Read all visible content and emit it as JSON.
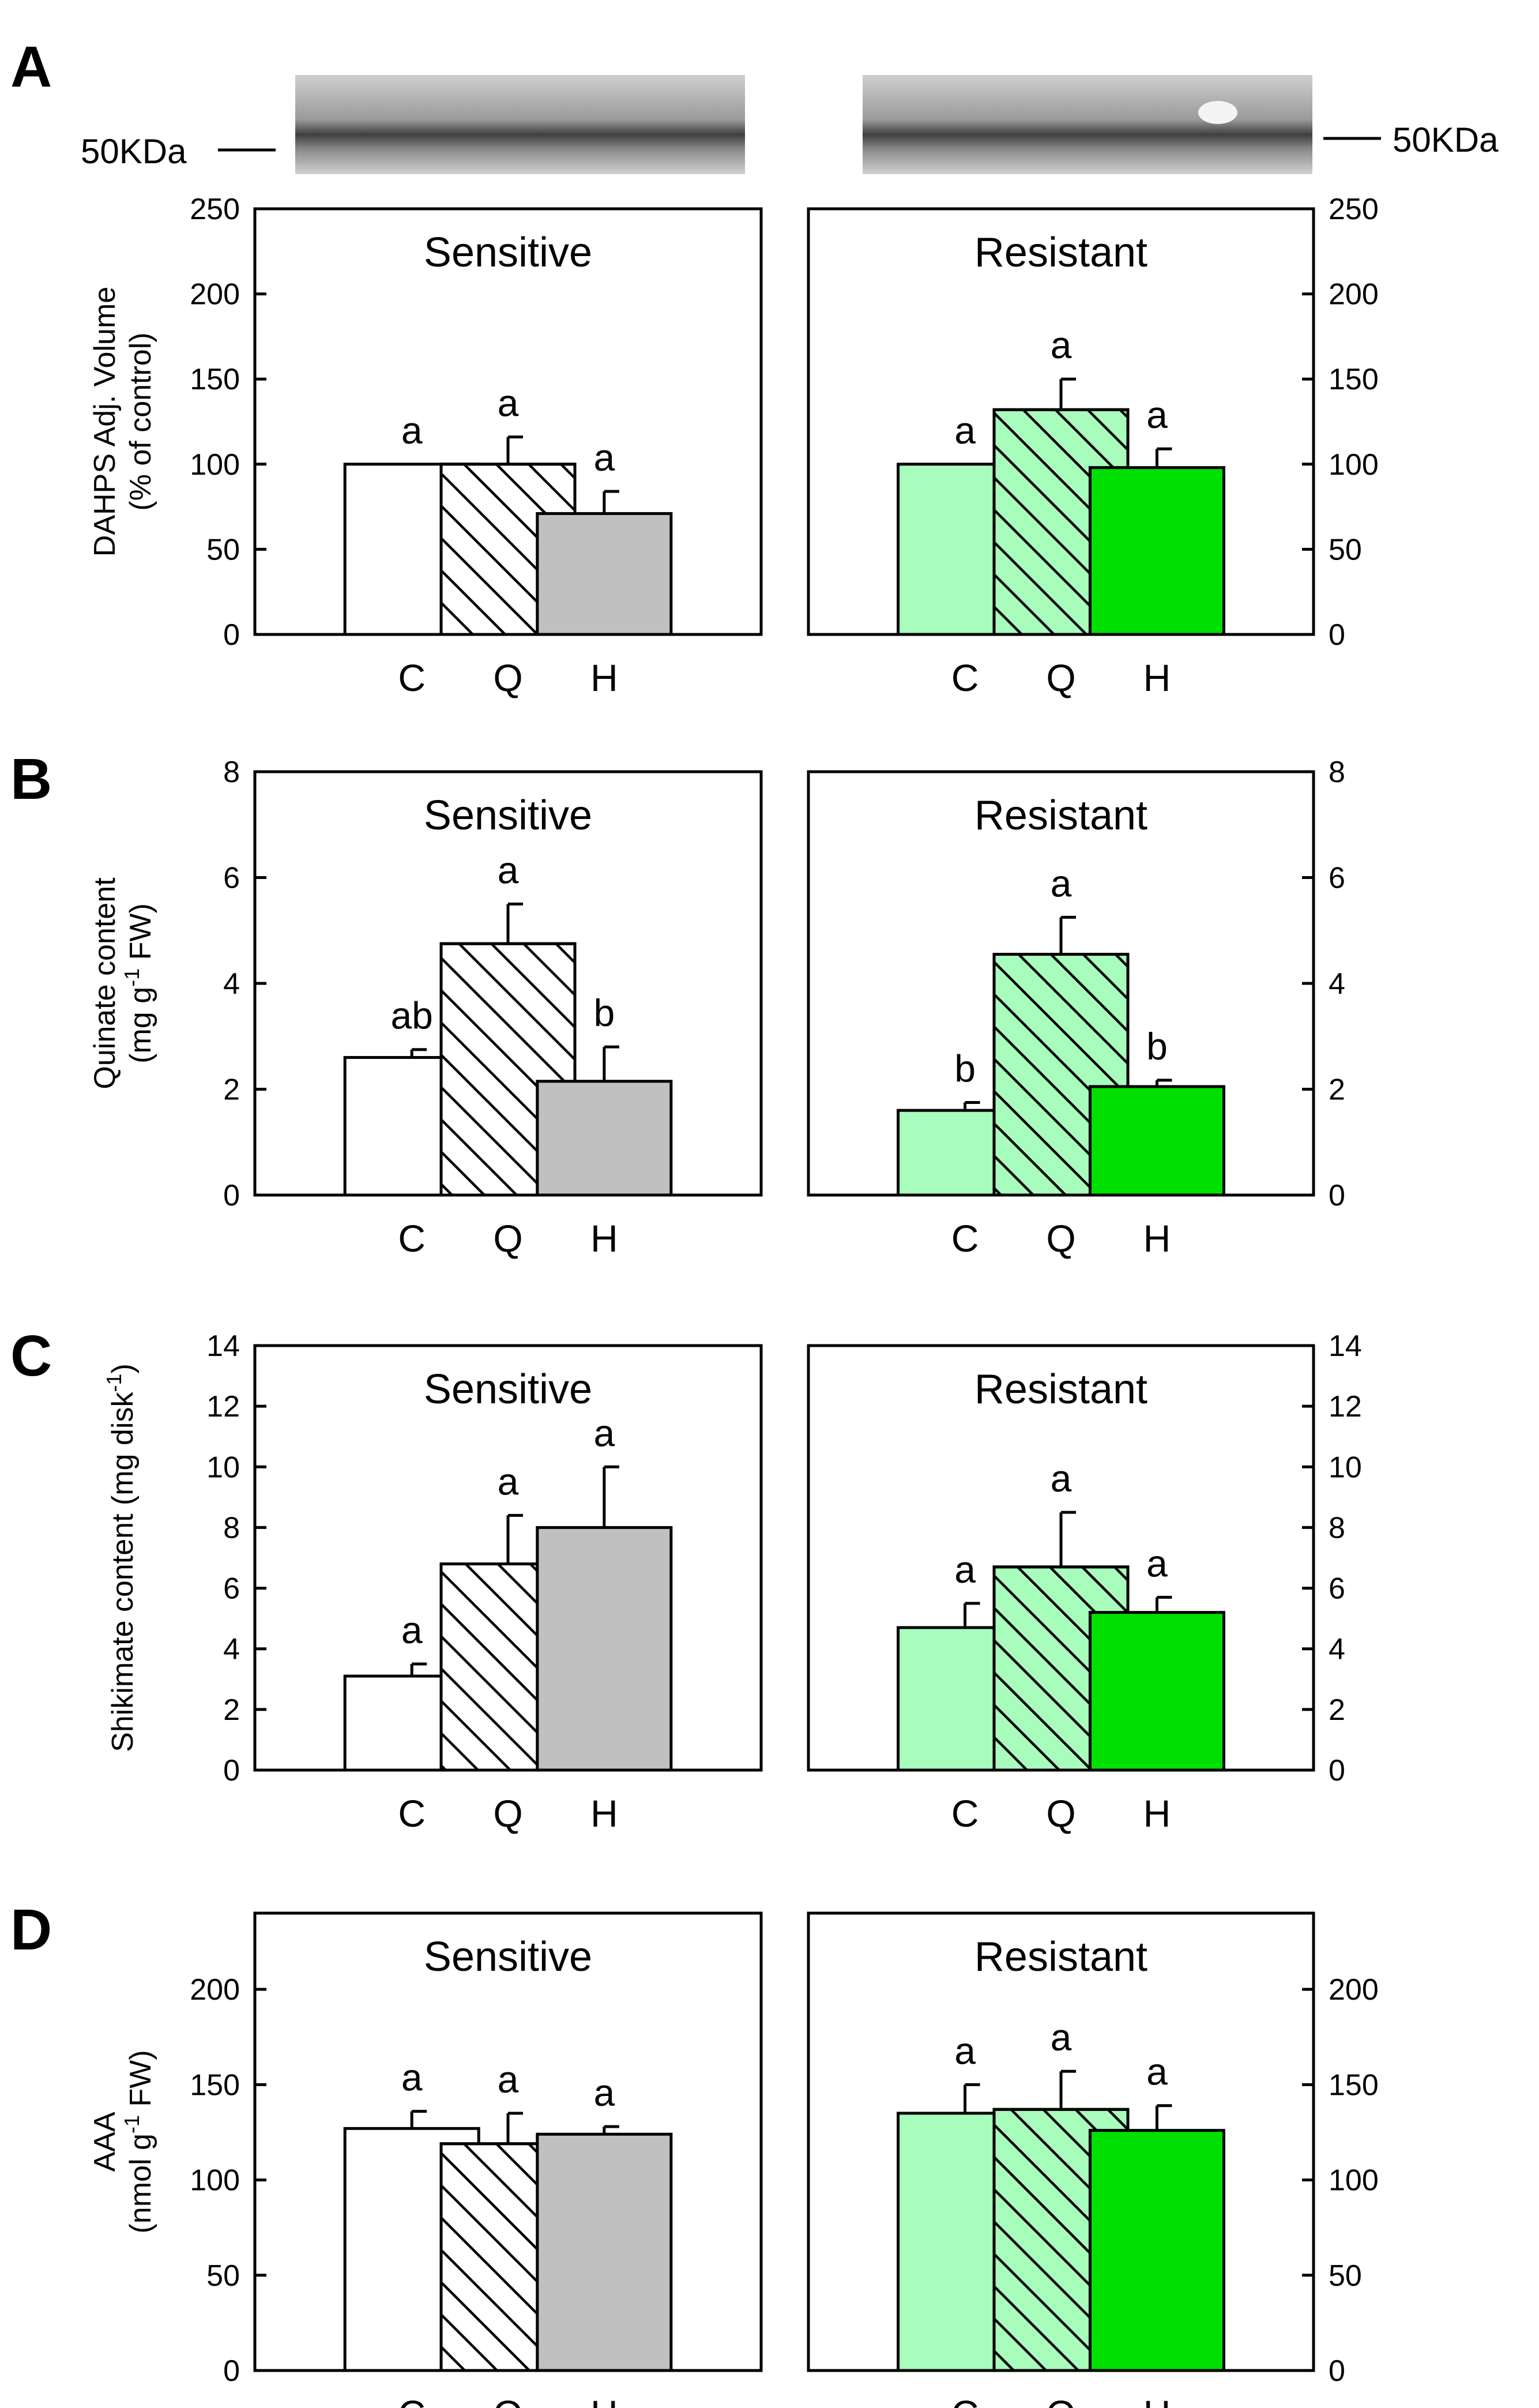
{
  "figure": {
    "western_blot": {
      "marker_left": "50KDa",
      "marker_right": "50KDa"
    },
    "colors": {
      "sensitive_C": "#ffffff",
      "sensitive_Q": "#ffffff",
      "sensitive_H": "#c0c0c0",
      "resistant_C": "#a8fcbc",
      "resistant_Q": "#a8fcbc",
      "resistant_H": "#00e000"
    }
  },
  "chart_data": [
    {
      "panel": "A",
      "type": "bar",
      "ylabel_lines": [
        "DAHPS Adj. Volume",
        "(% of control)"
      ],
      "ylim": [
        0,
        250
      ],
      "yticks": [
        0,
        50,
        100,
        150,
        200,
        250
      ],
      "categories": [
        "C",
        "Q",
        "H"
      ],
      "series": [
        {
          "name": "Sensitive",
          "values": [
            100,
            100,
            71
          ],
          "errors": [
            0,
            16,
            13
          ],
          "letters": [
            "a",
            "a",
            "a"
          ]
        },
        {
          "name": "Resistant",
          "values": [
            100,
            132,
            98
          ],
          "errors": [
            0,
            18,
            11
          ],
          "letters": [
            "a",
            "a",
            "a"
          ]
        }
      ]
    },
    {
      "panel": "B",
      "type": "bar",
      "ylabel_lines": [
        "Quinate content",
        "(mg g-1 FW)"
      ],
      "ylim": [
        0,
        8
      ],
      "yticks": [
        0,
        2,
        4,
        6,
        8
      ],
      "categories": [
        "C",
        "Q",
        "H"
      ],
      "series": [
        {
          "name": "Sensitive",
          "values": [
            2.6,
            4.75,
            2.15
          ],
          "errors": [
            0.15,
            0.75,
            0.65
          ],
          "letters": [
            "ab",
            "a",
            "b"
          ]
        },
        {
          "name": "Resistant",
          "values": [
            1.6,
            4.55,
            2.05
          ],
          "errors": [
            0.15,
            0.7,
            0.12
          ],
          "letters": [
            "b",
            "a",
            "b"
          ]
        }
      ]
    },
    {
      "panel": "C",
      "type": "bar",
      "ylabel_lines": [
        "Shikimate content (mg disk-1)"
      ],
      "ylim": [
        0,
        14
      ],
      "yticks": [
        0,
        2,
        4,
        6,
        8,
        10,
        12,
        14
      ],
      "categories": [
        "C",
        "Q",
        "H"
      ],
      "series": [
        {
          "name": "Sensitive",
          "values": [
            3.1,
            6.8,
            8.0
          ],
          "errors": [
            0.4,
            1.6,
            2.0
          ],
          "letters": [
            "a",
            "a",
            "a"
          ]
        },
        {
          "name": "Resistant",
          "values": [
            4.7,
            6.7,
            5.2
          ],
          "errors": [
            0.8,
            1.8,
            0.5
          ],
          "letters": [
            "a",
            "a",
            "a"
          ]
        }
      ]
    },
    {
      "panel": "D",
      "type": "bar",
      "ylabel_lines": [
        "AAA",
        "(nmol g-1 FW)"
      ],
      "ylim": [
        0,
        240
      ],
      "yticks": [
        0,
        50,
        100,
        150,
        200
      ],
      "categories": [
        "C",
        "Q",
        "H"
      ],
      "series": [
        {
          "name": "Sensitive",
          "values": [
            127,
            119,
            124
          ],
          "errors": [
            9,
            16,
            4
          ],
          "letters": [
            "a",
            "a",
            "a"
          ]
        },
        {
          "name": "Resistant",
          "values": [
            135,
            137,
            126
          ],
          "errors": [
            15,
            20,
            13
          ],
          "letters": [
            "a",
            "a",
            "a"
          ]
        }
      ]
    }
  ]
}
